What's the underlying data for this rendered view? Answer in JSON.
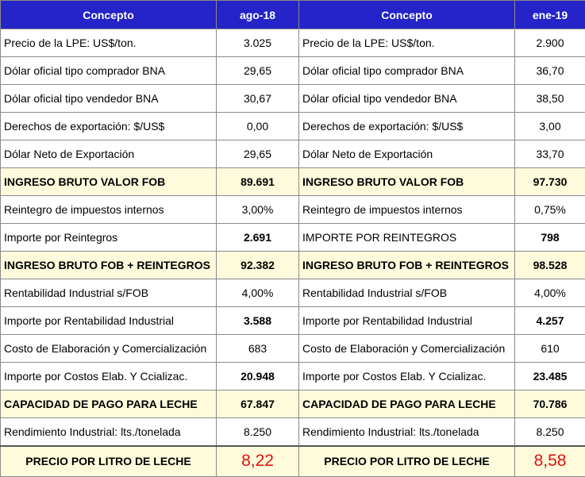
{
  "table": {
    "header": [
      "Concepto",
      "ago-18",
      "Concepto",
      "ene-19"
    ],
    "rows": [
      [
        "Precio de la LPE: US$/ton.",
        "3.025",
        "Precio de la LPE: US$/ton.",
        "2.900"
      ],
      [
        "Dólar oficial tipo comprador BNA",
        "29,65",
        "Dólar oficial tipo comprador BNA",
        "36,70"
      ],
      [
        "Dólar oficial tipo vendedor BNA",
        "30,67",
        "Dólar oficial tipo vendedor BNA",
        "38,50"
      ],
      [
        "Derechos de exportación: $/US$",
        "0,00",
        "Derechos de exportación: $/US$",
        "3,00"
      ],
      [
        "Dólar Neto de Exportación",
        "29,65",
        "Dólar Neto de Exportación",
        "33,70"
      ],
      [
        "INGRESO BRUTO VALOR FOB",
        "89.691",
        "INGRESO BRUTO VALOR FOB",
        "97.730"
      ],
      [
        "Reintegro de impuestos internos",
        "3,00%",
        "Reintegro de impuestos internos",
        "0,75%"
      ],
      [
        "Importe por Reintegros",
        "2.691",
        "IMPORTE POR REINTEGROS",
        "798"
      ],
      [
        "INGRESO BRUTO FOB + REINTEGROS",
        "92.382",
        "INGRESO BRUTO FOB + REINTEGROS",
        "98.528"
      ],
      [
        "Rentabilidad Industrial s/FOB",
        "4,00%",
        "Rentabilidad Industrial s/FOB",
        "4,00%"
      ],
      [
        "Importe por Rentabilidad Industrial",
        "3.588",
        "Importe por Rentabilidad Industrial",
        "4.257"
      ],
      [
        "Costo de Elaboración y Comercialización",
        "683",
        "Costo de Elaboración y Comercialización",
        "610"
      ],
      [
        "Importe por Costos Elab. Y Ccializac.",
        "20.948",
        "Importe por Costos Elab. Y Ccializac.",
        "23.485"
      ],
      [
        "CAPACIDAD DE PAGO PARA LECHE",
        "67.847",
        "CAPACIDAD DE PAGO PARA LECHE",
        "70.786"
      ],
      [
        "Rendimiento Industrial: lts./tonelada",
        "8.250",
        "Rendimiento Industrial: lts./tonelada",
        "8.250"
      ],
      [
        "PRECIO POR LITRO DE LECHE",
        "8,22",
        "PRECIO POR LITRO DE LECHE",
        "8,58"
      ]
    ]
  }
}
